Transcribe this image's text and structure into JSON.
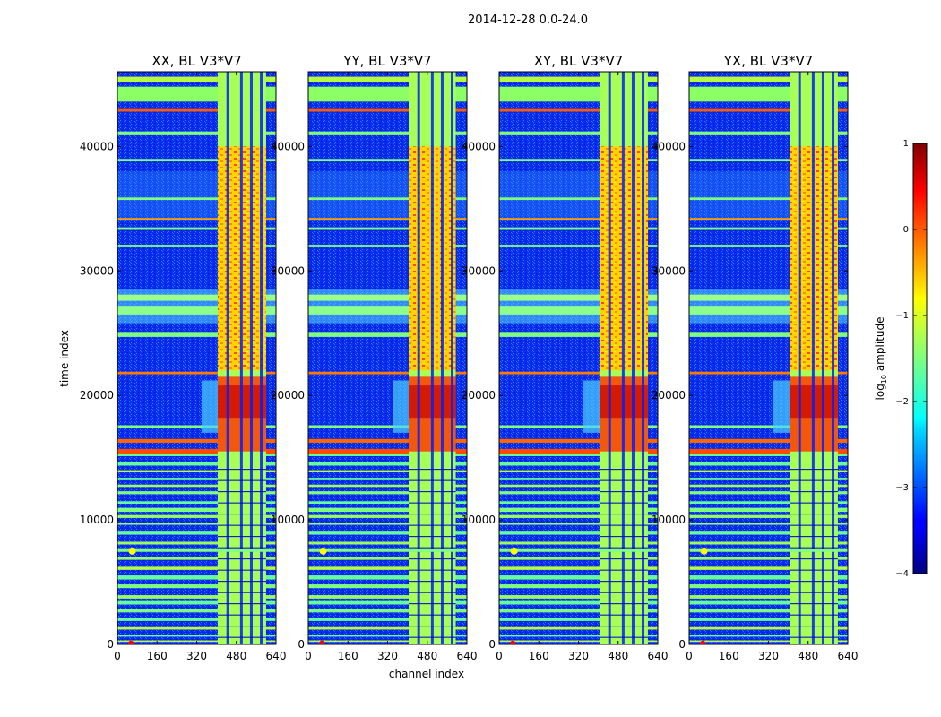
{
  "chart_data": {
    "type": "heatmap",
    "suptitle": "2014-12-28 0.0-24.0",
    "xlabel": "channel index",
    "ylabel": "time index",
    "xlim": [
      0,
      640
    ],
    "ylim": [
      0,
      46000
    ],
    "xticks": [
      0,
      160,
      320,
      480,
      640
    ],
    "yticks": [
      0,
      10000,
      20000,
      30000,
      40000
    ],
    "xtick_labels": [
      "0",
      "160",
      "320",
      "480",
      "640"
    ],
    "ytick_labels": [
      "0",
      "10000",
      "20000",
      "30000",
      "40000"
    ],
    "panels": [
      {
        "title": "XX, BL V3*V7",
        "band": [
          405,
          600
        ]
      },
      {
        "title": "YY, BL V3*V7",
        "band": [
          405,
          595
        ]
      },
      {
        "title": "XY, BL V3*V7",
        "band": [
          405,
          600
        ]
      },
      {
        "title": "YX, BL V3*V7",
        "band": [
          405,
          600
        ]
      }
    ],
    "colorbar": {
      "label": "log10 amplitude",
      "label_main": "log",
      "label_sub": "10",
      "label_rest": " amplitude",
      "range": [
        -4,
        1
      ],
      "ticks": [
        1,
        0,
        -1,
        -2,
        -3,
        -4
      ],
      "tick_labels": [
        "1",
        "0",
        "−1",
        "−2",
        "−3",
        "−4"
      ],
      "colormap": "jet"
    }
  }
}
